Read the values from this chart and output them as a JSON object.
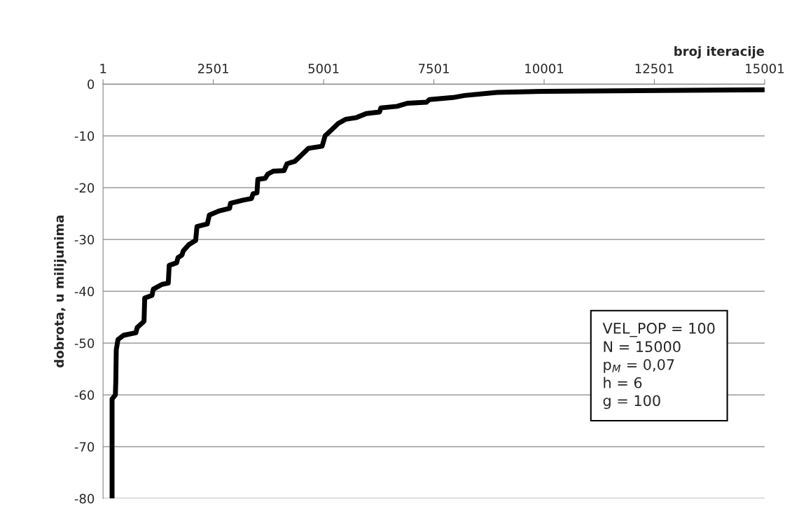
{
  "chart_data": {
    "type": "line",
    "xlabel": "broj iteracije",
    "ylabel": "dobrota, u milijunima",
    "xlim": [
      1,
      15001
    ],
    "xticks": [
      1,
      2501,
      5001,
      7501,
      10001,
      12501,
      15001
    ],
    "ylim": [
      -80,
      0
    ],
    "yticks": [
      -80,
      -70,
      -60,
      -50,
      -40,
      -30,
      -20,
      -10,
      0
    ],
    "grid": "y",
    "legend": false,
    "marker": "none",
    "line_style": "solid",
    "series": [
      {
        "color": "#000000",
        "x": [
          205,
          205,
          280,
          290,
          300,
          340,
          465,
          745,
          775,
          930,
          945,
          1110,
          1140,
          1330,
          1480,
          1500,
          1670,
          1700,
          1790,
          1820,
          1945,
          2100,
          2130,
          2365,
          2410,
          2630,
          2870,
          2890,
          3180,
          3365,
          3400,
          3490,
          3510,
          3675,
          3735,
          3860,
          4105,
          4170,
          4350,
          4475,
          4660,
          4968,
          5035,
          5135,
          5335,
          5500,
          5735,
          5968,
          6268,
          6300,
          6668,
          6900,
          7335,
          7400,
          7935,
          8200,
          8935,
          10000,
          12668,
          15001
        ],
        "values": [
          -80,
          -60.8,
          -60.0,
          -57.3,
          -51.3,
          -49.3,
          -48.5,
          -48.0,
          -47.0,
          -45.8,
          -41.3,
          -40.8,
          -39.6,
          -38.7,
          -38.4,
          -35.0,
          -34.5,
          -33.5,
          -33.0,
          -32.2,
          -31.0,
          -30.2,
          -27.5,
          -27.0,
          -25.3,
          -24.5,
          -24.0,
          -23.0,
          -22.4,
          -22.1,
          -21.2,
          -21.0,
          -18.4,
          -18.2,
          -17.4,
          -16.8,
          -16.7,
          -15.4,
          -14.9,
          -13.9,
          -12.4,
          -12.0,
          -10.0,
          -9.2,
          -7.6,
          -6.8,
          -6.5,
          -5.7,
          -5.4,
          -4.6,
          -4.3,
          -3.7,
          -3.5,
          -3.0,
          -2.6,
          -2.2,
          -1.6,
          -1.4,
          -1.25,
          -1.1
        ]
      }
    ],
    "annotations": [
      "VEL_POP = 100",
      "N = 15000",
      "p$_{M}$ = 0,07",
      "h = 6",
      "g = 100"
    ]
  }
}
